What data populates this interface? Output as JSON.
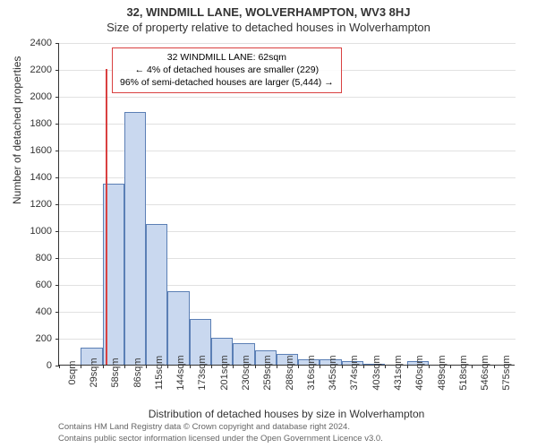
{
  "titles": {
    "main": "32, WINDMILL LANE, WOLVERHAMPTON, WV3 8HJ",
    "sub": "Size of property relative to detached houses in Wolverhampton"
  },
  "axes": {
    "xlabel": "Distribution of detached houses by size in Wolverhampton",
    "ylabel": "Number of detached properties",
    "ylim": [
      0,
      2400
    ],
    "ytick_step": 200,
    "x_categories": [
      "0sqm",
      "29sqm",
      "58sqm",
      "86sqm",
      "115sqm",
      "144sqm",
      "173sqm",
      "201sqm",
      "230sqm",
      "259sqm",
      "288sqm",
      "316sqm",
      "345sqm",
      "374sqm",
      "403sqm",
      "431sqm",
      "460sqm",
      "489sqm",
      "518sqm",
      "546sqm",
      "575sqm"
    ]
  },
  "chart": {
    "type": "histogram",
    "bar_color": "#c9d8ef",
    "bar_border": "#5b7fb5",
    "bar_width_ratio": 1.0,
    "values": [
      0,
      130,
      1350,
      1880,
      1050,
      550,
      340,
      200,
      160,
      110,
      80,
      40,
      40,
      30,
      10,
      0,
      30,
      0,
      0,
      0,
      0
    ],
    "background_color": "#ffffff",
    "grid_color": "#333333",
    "grid_opacity": 0.15
  },
  "marker": {
    "position_sqm": 62,
    "color": "#d94040",
    "height_value": 2200
  },
  "annotation": {
    "border_color": "#d94040",
    "lines": [
      "32 WINDMILL LANE: 62sqm",
      "← 4% of detached houses are smaller (229)",
      "96% of semi-detached houses are larger (5,444) →"
    ]
  },
  "footer": {
    "line1": "Contains HM Land Registry data © Crown copyright and database right 2024.",
    "line2": "Contains public sector information licensed under the Open Government Licence v3.0."
  },
  "style": {
    "title_fontsize": 13,
    "axis_label_fontsize": 12,
    "tick_fontsize": 11,
    "annotation_fontsize": 10.5,
    "footer_fontsize": 9.5
  }
}
